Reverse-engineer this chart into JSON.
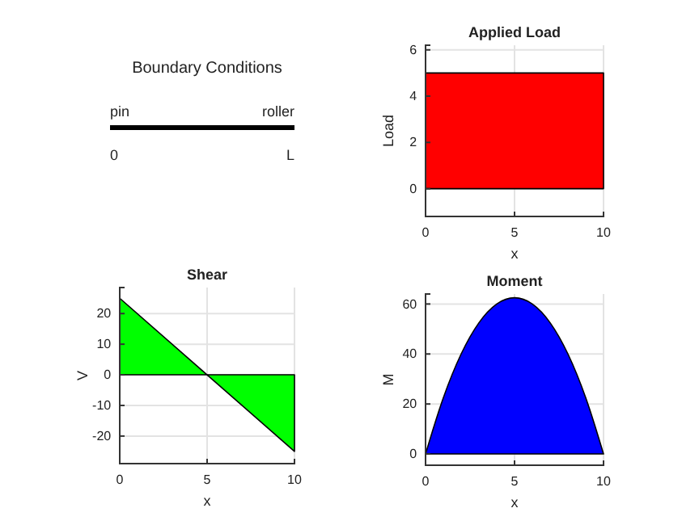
{
  "chart_data": [
    {
      "type": "other",
      "title": "Boundary Conditions",
      "annotations": [
        "pin",
        "roller",
        "0",
        "L"
      ]
    },
    {
      "type": "area",
      "title": "Applied Load",
      "xlabel": "x",
      "ylabel": "Load",
      "x": [
        0,
        10
      ],
      "xlim": [
        0,
        10
      ],
      "xticks": [
        0,
        5,
        10
      ],
      "ylim": [
        -1.2,
        6.2
      ],
      "yticks": [
        0,
        2,
        4,
        6
      ],
      "grid": true,
      "series": [
        {
          "color": "#ff0000",
          "values": [
            5,
            5
          ]
        }
      ]
    },
    {
      "type": "area",
      "title": "Shear",
      "xlabel": "x",
      "ylabel": "V",
      "xlim": [
        0,
        10
      ],
      "xticks": [
        0,
        5,
        10
      ],
      "ylim": [
        -29,
        28.5
      ],
      "yticks": [
        -20,
        -10,
        0,
        10,
        20
      ],
      "grid": true,
      "series": [
        {
          "color": "#00ff00",
          "x": [
            0,
            5
          ],
          "values": [
            25,
            0
          ]
        },
        {
          "color": "#00ff00",
          "x": [
            5,
            10
          ],
          "values": [
            0,
            -25
          ]
        }
      ]
    },
    {
      "type": "area",
      "title": "Moment",
      "xlabel": "x",
      "ylabel": "M",
      "x": [
        0,
        1,
        2,
        3,
        4,
        5,
        6,
        7,
        8,
        9,
        10
      ],
      "xlim": [
        0,
        10
      ],
      "xticks": [
        0,
        5,
        10
      ],
      "ylim": [
        -4.5,
        64
      ],
      "yticks": [
        0,
        20,
        40,
        60
      ],
      "grid": true,
      "series": [
        {
          "color": "#0000ff",
          "values": [
            0,
            22.5,
            40,
            52.5,
            60,
            62.5,
            60,
            52.5,
            40,
            22.5,
            0
          ]
        }
      ]
    }
  ]
}
